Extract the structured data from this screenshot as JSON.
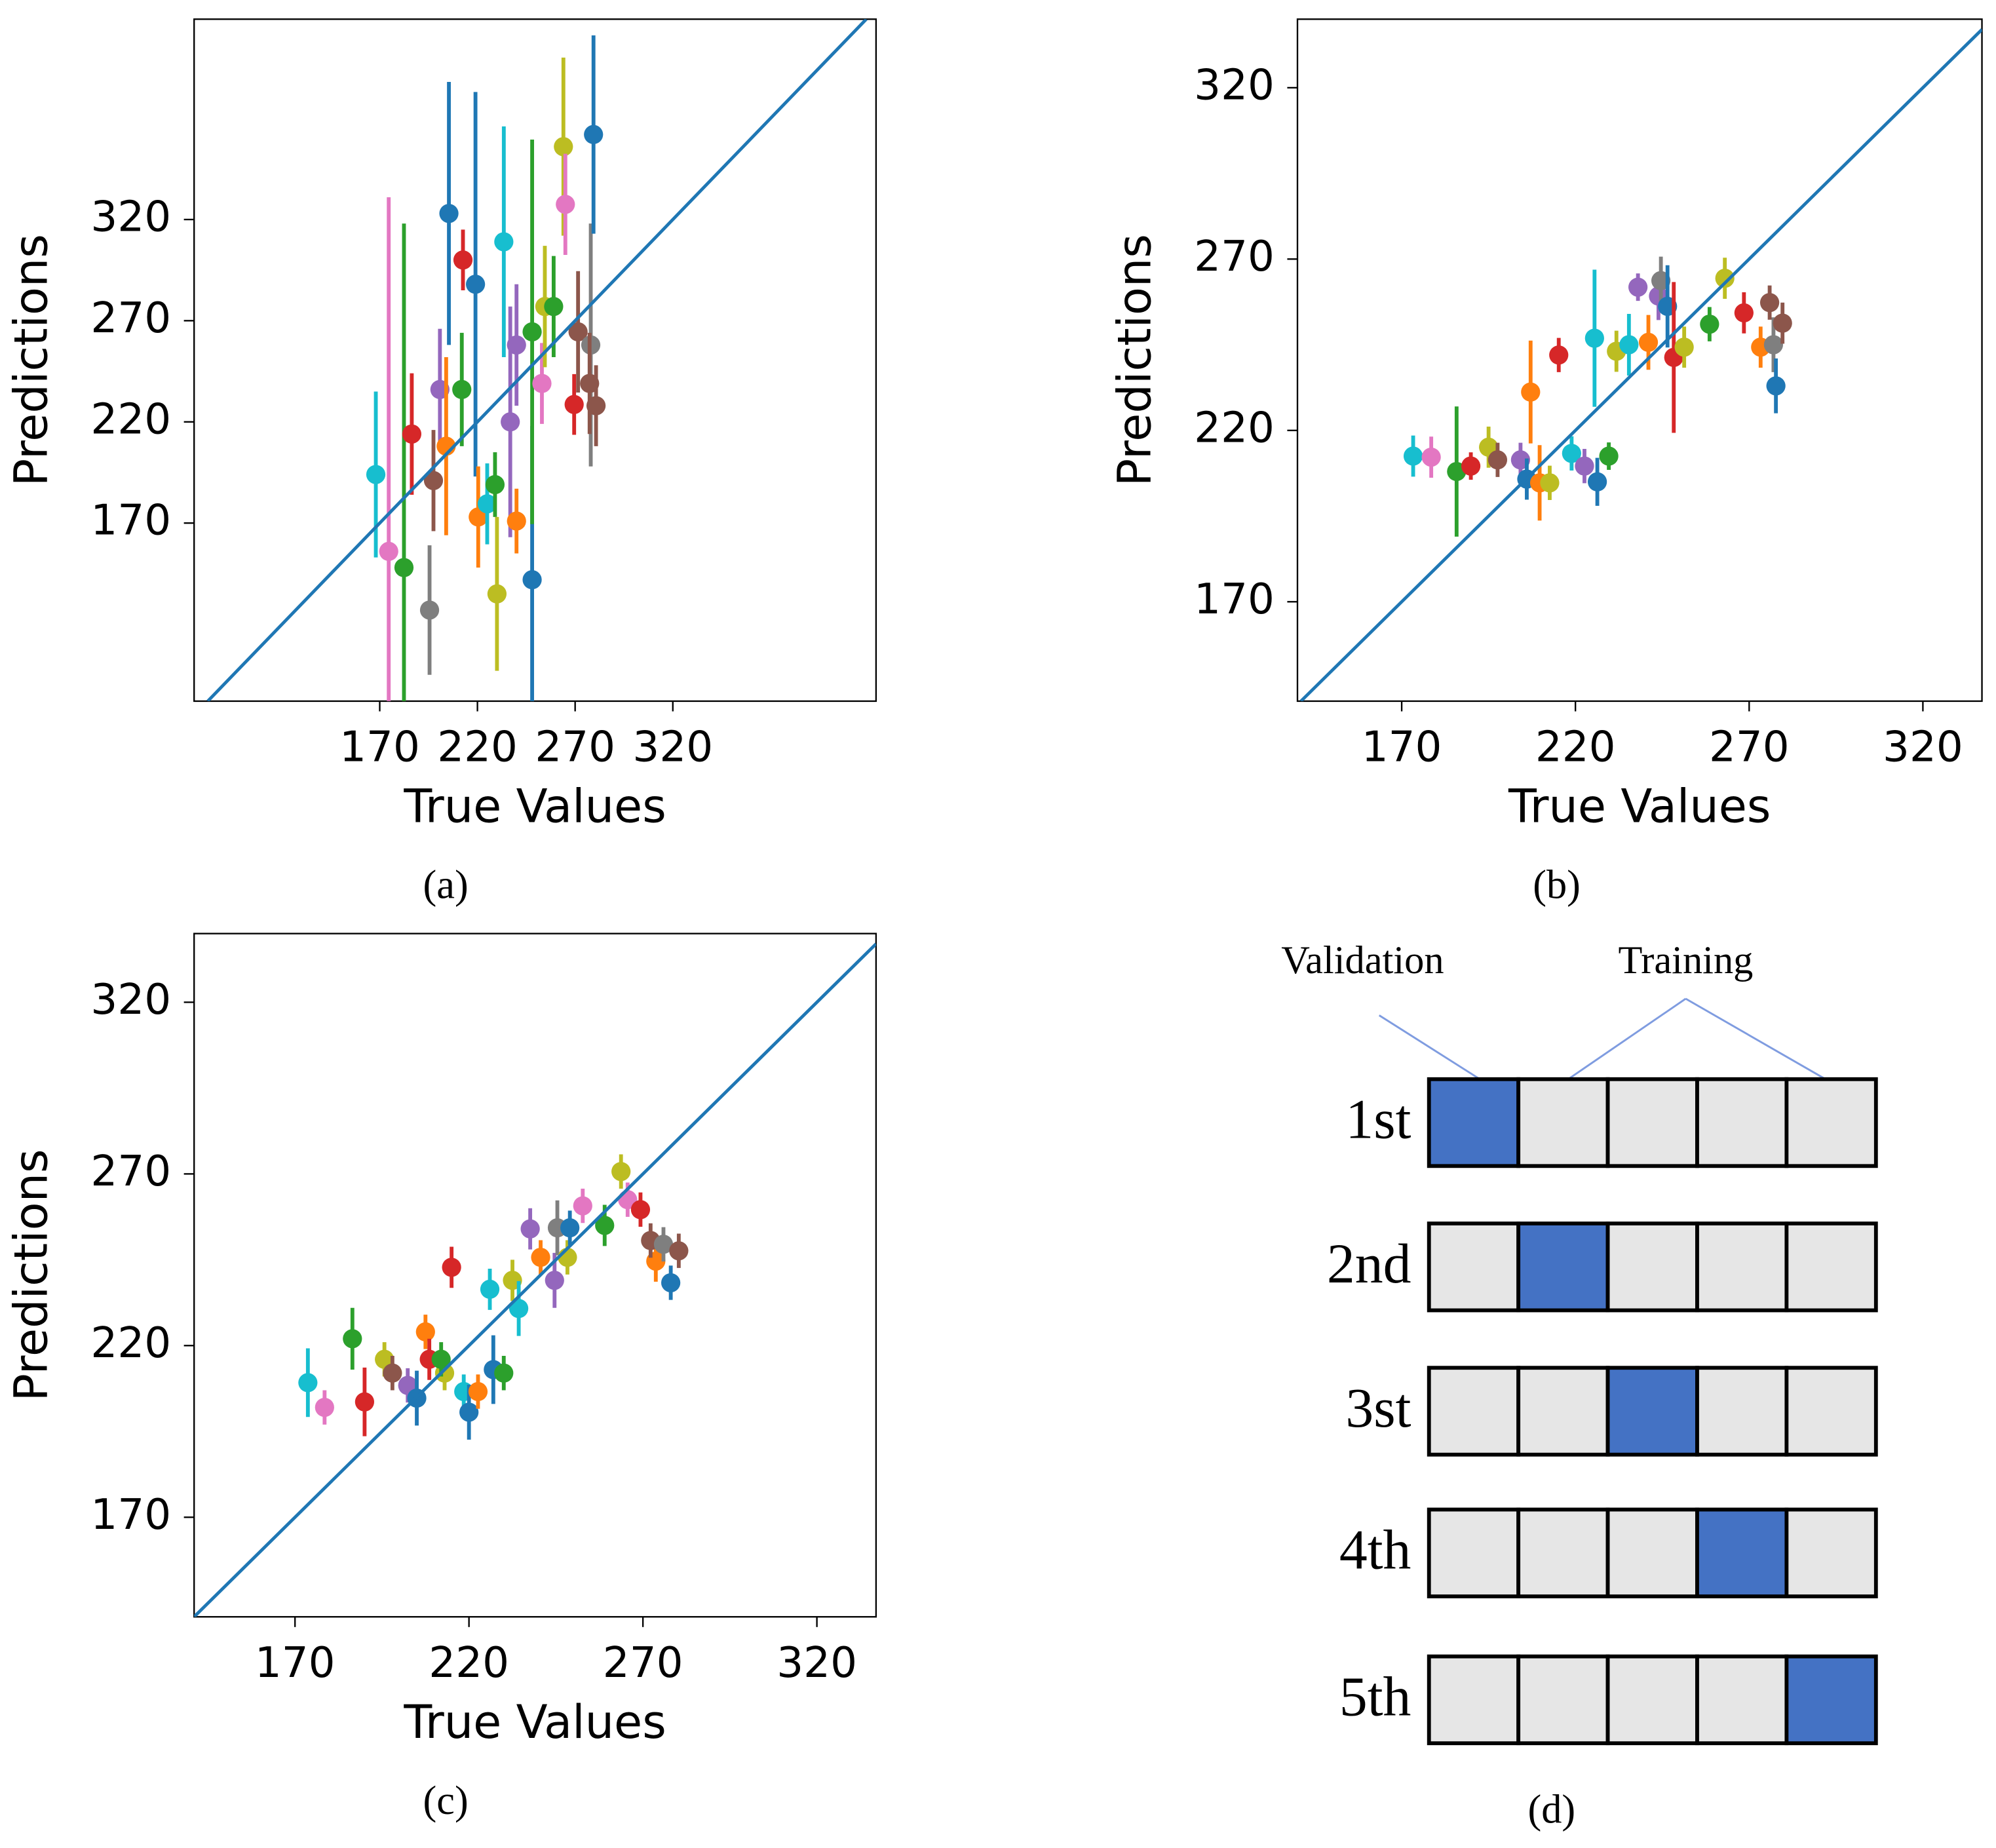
{
  "chart_data": [
    {
      "type": "errorbar",
      "label": "(a)",
      "x_label": "True Values",
      "y_label": "Predictions",
      "xlim": [
        75,
        424
      ],
      "ylim": [
        82,
        419
      ],
      "xticks": [
        170,
        220,
        270,
        320
      ],
      "yticks": [
        170,
        220,
        270,
        320
      ],
      "diagonal_color": "#1f77b4",
      "x": [
        168,
        174.6,
        182.4,
        186.4,
        195.5,
        197.5,
        200.8,
        204,
        205.4,
        212.6,
        212,
        219,
        220.4,
        225,
        229,
        230,
        233.5,
        236.8,
        240,
        240,
        248,
        248,
        253,
        254.5,
        259,
        264,
        265,
        269.5,
        271.5,
        278,
        277.4,
        280.7,
        279.4
      ],
      "values": [
        194,
        156,
        148,
        214,
        127,
        191,
        236,
        208,
        323,
        300,
        236,
        288,
        173,
        179.5,
        189,
        135,
        309,
        220,
        171,
        258,
        142,
        264.5,
        239,
        277,
        277,
        356,
        327.5,
        228.6,
        264.5,
        258,
        239,
        228,
        362
      ],
      "errors": [
        41,
        175,
        170,
        30,
        32,
        25,
        30,
        44,
        65,
        15,
        28,
        95,
        25,
        20,
        16,
        38,
        57,
        57,
        16,
        30,
        76,
        95,
        20,
        30,
        25,
        44,
        25,
        15,
        30,
        60,
        25,
        20,
        49
      ],
      "colors": [
        "#17becf",
        "#e377c2",
        "#2ca02c",
        "#d62728",
        "#7f7f7f",
        "#8c564b",
        "#9467bd",
        "#ff7f0e",
        "#1f77b4",
        "#d62728",
        "#2ca02c",
        "#1f77b4",
        "#ff7f0e",
        "#17becf",
        "#2ca02c",
        "#bcbd22",
        "#17becf",
        "#9467bd",
        "#ff7f0e",
        "#9467bd",
        "#1f77b4",
        "#2ca02c",
        "#e377c2",
        "#bcbd22",
        "#2ca02c",
        "#bcbd22",
        "#e377c2",
        "#d62728",
        "#8c564b",
        "#7f7f7f",
        "#8c564b",
        "#8c564b",
        "#1f77b4"
      ]
    },
    {
      "type": "errorbar",
      "label": "(b)",
      "x_label": "True Values",
      "y_label": "Predictions",
      "xlim": [
        140,
        337
      ],
      "ylim": [
        141,
        340
      ],
      "xticks": [
        170,
        220,
        270,
        320
      ],
      "yticks": [
        170,
        220,
        270,
        320
      ],
      "diagonal_color": "#1f77b4",
      "x": [
        173.3,
        178.5,
        185.8,
        189.9,
        195,
        197.6,
        204.2,
        206,
        207.1,
        209.7,
        212.6,
        215.2,
        218.9,
        222.6,
        225.5,
        226.3,
        229.6,
        231.8,
        238,
        235.4,
        241,
        243.9,
        244.6,
        246.5,
        248.3,
        251.3,
        258.6,
        263,
        268.5,
        273.3,
        275.9,
        277,
        279.6,
        277.7
      ],
      "values": [
        212.5,
        212.2,
        208,
        209.6,
        215.1,
        211.4,
        211.4,
        205.8,
        231.2,
        204.7,
        204.7,
        242,
        213.3,
        209.6,
        246.9,
        205,
        212.5,
        243.1,
        261.8,
        245,
        245.7,
        259.2,
        263.7,
        256.2,
        241.3,
        244.3,
        251,
        264.4,
        254.3,
        244.3,
        257.3,
        245,
        251.3,
        233
      ],
      "errors": [
        6,
        6,
        19,
        4,
        6,
        5,
        5,
        6,
        15,
        11,
        5,
        5,
        5,
        5,
        20,
        7,
        4,
        6,
        4,
        9,
        8,
        7,
        7,
        12,
        22,
        6,
        5,
        6,
        6,
        6,
        5,
        8,
        6,
        8
      ],
      "colors": [
        "#17becf",
        "#e377c2",
        "#2ca02c",
        "#d62728",
        "#bcbd22",
        "#8c564b",
        "#9467bd",
        "#1f77b4",
        "#ff7f0e",
        "#ff7f0e",
        "#bcbd22",
        "#d62728",
        "#17becf",
        "#9467bd",
        "#17becf",
        "#1f77b4",
        "#2ca02c",
        "#bcbd22",
        "#9467bd",
        "#17becf",
        "#ff7f0e",
        "#9467bd",
        "#7f7f7f",
        "#1f77b4",
        "#d62728",
        "#bcbd22",
        "#2ca02c",
        "#bcbd22",
        "#d62728",
        "#ff7f0e",
        "#8c564b",
        "#7f7f7f",
        "#8c564b",
        "#1f77b4"
      ]
    },
    {
      "type": "errorbar",
      "label": "(c)",
      "x_label": "True Values",
      "y_label": "Predictions",
      "xlim": [
        141,
        337
      ],
      "ylim": [
        141,
        340
      ],
      "xticks": [
        170,
        220,
        270,
        320
      ],
      "yticks": [
        170,
        220,
        270,
        320
      ],
      "diagonal_color": "#1f77b4",
      "x": [
        173.7,
        178.5,
        186.5,
        190,
        195.7,
        202.4,
        205,
        207.5,
        208.6,
        198,
        213,
        212,
        215,
        218.5,
        220,
        222.6,
        227,
        230,
        226,
        232.5,
        234.3,
        237.6,
        244.6,
        240.6,
        245.4,
        248.3,
        249,
        252.7,
        259,
        263.7,
        265.6,
        269.3,
        273.7,
        272.2,
        275.9,
        278,
        280.3
      ],
      "values": [
        209.2,
        202,
        222,
        203.6,
        216,
        208.4,
        204.7,
        224,
        216,
        212,
        212,
        216,
        242.8,
        206.6,
        200.6,
        206.6,
        213,
        212,
        236.4,
        239,
        230.8,
        254,
        239,
        245.7,
        254.3,
        245.7,
        254.3,
        260.7,
        255,
        270.7,
        262.5,
        259.6,
        244.6,
        250.6,
        249.5,
        238.3,
        247.6
      ],
      "errors": [
        10,
        5,
        9,
        10,
        5,
        5,
        8,
        5,
        6,
        5,
        5,
        5,
        6,
        5,
        8,
        5,
        10,
        5,
        6,
        6,
        8,
        6,
        8,
        5,
        8,
        5,
        5,
        5,
        6,
        5,
        5,
        5,
        6,
        5,
        5,
        5,
        5
      ],
      "colors": [
        "#17becf",
        "#e377c2",
        "#2ca02c",
        "#d62728",
        "#bcbd22",
        "#9467bd",
        "#1f77b4",
        "#ff7f0e",
        "#d62728",
        "#8c564b",
        "#bcbd22",
        "#2ca02c",
        "#d62728",
        "#17becf",
        "#1f77b4",
        "#ff7f0e",
        "#1f77b4",
        "#2ca02c",
        "#17becf",
        "#bcbd22",
        "#17becf",
        "#9467bd",
        "#9467bd",
        "#ff7f0e",
        "#7f7f7f",
        "#bcbd22",
        "#1f77b4",
        "#e377c2",
        "#2ca02c",
        "#bcbd22",
        "#e377c2",
        "#d62728",
        "#ff7f0e",
        "#8c564b",
        "#7f7f7f",
        "#1f77b4",
        "#8c564b"
      ]
    }
  ],
  "diagram": {
    "label": "(d)",
    "validation": "Validation",
    "training": "Training",
    "rows": [
      "1st",
      "2nd",
      "3st",
      "4th",
      "5th"
    ]
  }
}
